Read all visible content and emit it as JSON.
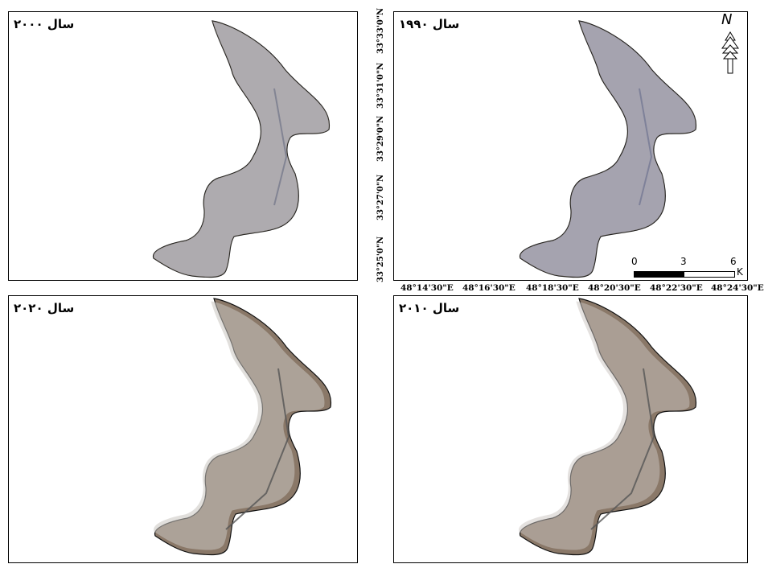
{
  "panels": {
    "y2000": {
      "title": "سال ۲۰۰۰"
    },
    "y1990": {
      "title": "سال ۱۹۹۰"
    },
    "y2020": {
      "title": "سال ۲۰۲۰"
    },
    "y2010": {
      "title": "سال ۲۰۱۰"
    }
  },
  "latitude_labels": [
    "33°33'0\"N",
    "33°31'0\"N",
    "33°29'0\"N",
    "33°27'0\"N",
    "33°25'0\"N"
  ],
  "longitude_labels": [
    "48°14'30\"E",
    "48°16'30\"E",
    "48°18'30\"E",
    "48°20'30\"E",
    "48°22'30\"E",
    "48°24'30\"E"
  ],
  "north_arrow": {
    "letter": "N",
    "icon": "north-arrow-icon"
  },
  "scale_bar": {
    "ticks": [
      "0",
      "3",
      "6"
    ],
    "unit": "K"
  },
  "colors": {
    "early_imagery": "#a9acc0",
    "late_imagery": "#8a7868",
    "boundary": "#111111"
  }
}
